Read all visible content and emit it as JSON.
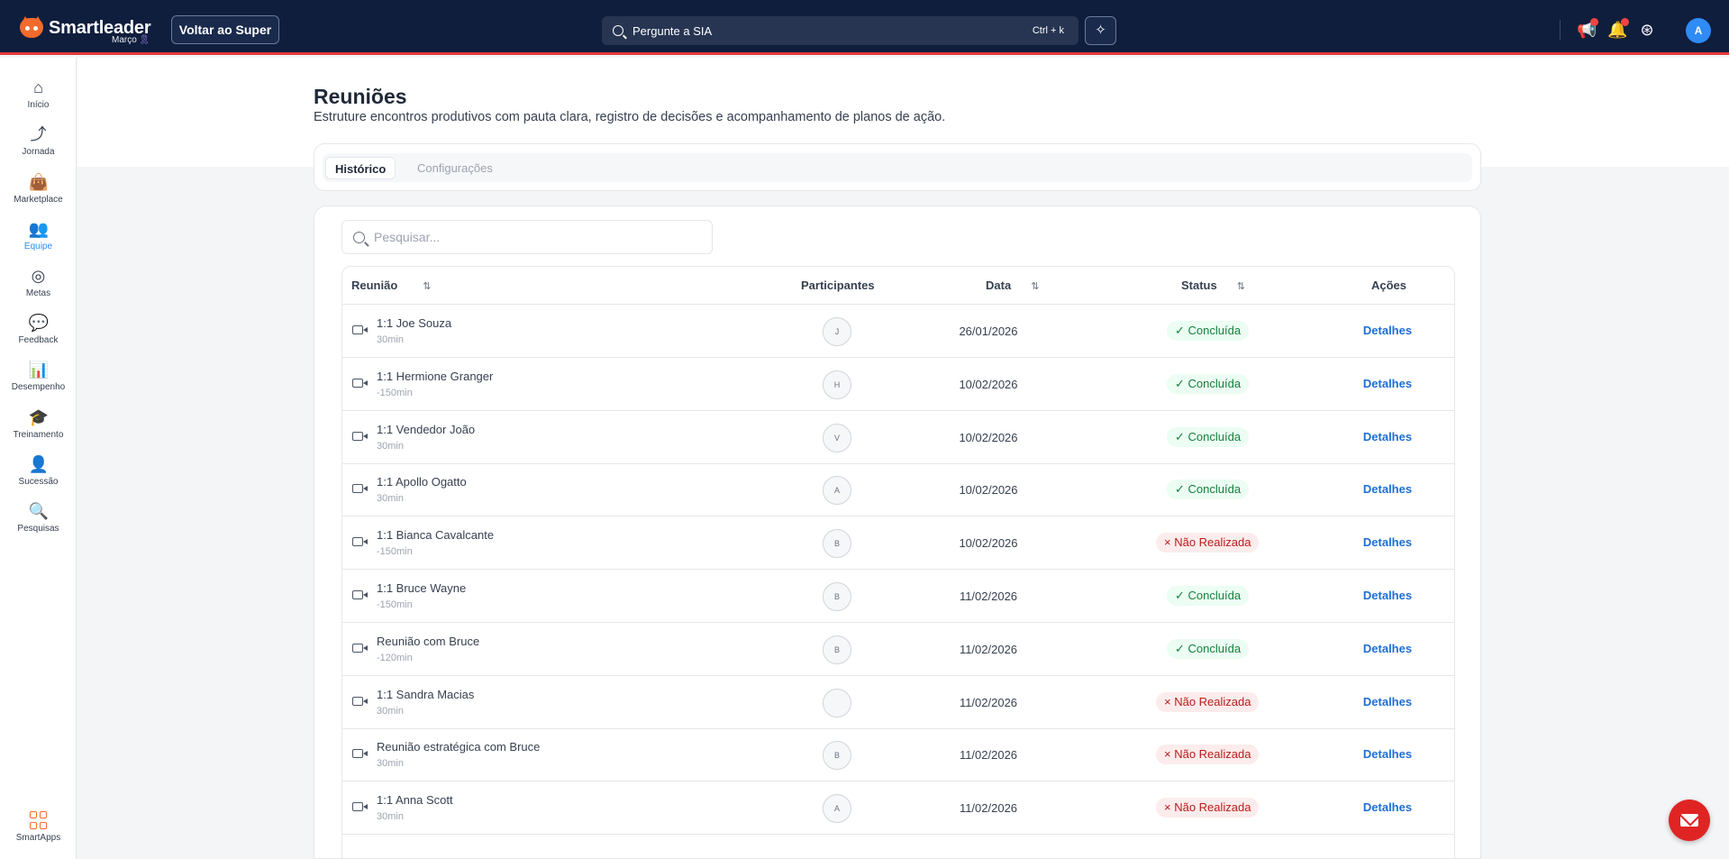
{
  "brand": {
    "name": "Smartleader",
    "sub": "Março",
    "ribbon": "🎗"
  },
  "topbar": {
    "back_label": "Voltar ao Super",
    "search_placeholder": "Pergunte a SIA",
    "search_shortcut": "Ctrl + k",
    "user_initial": "A",
    "icons": [
      "sparkle-wand-icon",
      "megaphone-icon",
      "bell-icon",
      "help-lifebuoy-icon"
    ],
    "accent_color": "#e23b3b",
    "bar_color": "#0f1e3d"
  },
  "sidebar": {
    "items": [
      {
        "label": "Início",
        "icon": "home-icon"
      },
      {
        "label": "Jornada",
        "icon": "route-icon"
      },
      {
        "label": "Marketplace",
        "icon": "shopping-bag-icon"
      },
      {
        "label": "Equipe",
        "icon": "users-icon",
        "active": true
      },
      {
        "label": "Metas",
        "icon": "target-icon"
      },
      {
        "label": "Feedback",
        "icon": "chat-bubbles-icon"
      },
      {
        "label": "Desempenho",
        "icon": "bar-chart-icon"
      },
      {
        "label": "Treinamento",
        "icon": "graduation-cap-icon"
      },
      {
        "label": "Sucessão",
        "icon": "user-plus-icon"
      },
      {
        "label": "Pesquisas",
        "icon": "search-document-icon"
      }
    ],
    "smartapps_label": "SmartApps"
  },
  "page": {
    "title": "Reuniões",
    "subtitle": "Estruture encontros produtivos com pauta clara, registro de decisões e acompanhamento de planos de ação."
  },
  "tabs": [
    {
      "label": "Histórico",
      "active": true
    },
    {
      "label": "Configurações",
      "active": false
    }
  ],
  "search": {
    "placeholder": "Pesquisar..."
  },
  "table": {
    "headers": {
      "meeting": "Reunião",
      "participants": "Participantes",
      "date": "Data",
      "status": "Status",
      "actions": "Ações"
    },
    "rows": [
      {
        "title": "1:1 Joe Souza",
        "duration": "30min",
        "participant": "J",
        "date": "26/01/2026",
        "status": "✓ Concluída",
        "status_type": "ok",
        "action": "Detalhes"
      },
      {
        "title": "1:1 Hermione Granger",
        "duration": "-150min",
        "participant": "H",
        "date": "10/02/2026",
        "status": "✓ Concluída",
        "status_type": "ok",
        "action": "Detalhes"
      },
      {
        "title": "1:1 Vendedor João",
        "duration": "30min",
        "participant": "V",
        "date": "10/02/2026",
        "status": "✓ Concluída",
        "status_type": "ok",
        "action": "Detalhes"
      },
      {
        "title": "1:1 Apollo Ogatto",
        "duration": "30min",
        "participant": "A",
        "date": "10/02/2026",
        "status": "✓ Concluída",
        "status_type": "ok",
        "action": "Detalhes"
      },
      {
        "title": "1:1 Bianca Cavalcante",
        "duration": "-150min",
        "participant": "B",
        "date": "10/02/2026",
        "status": "× Não Realizada",
        "status_type": "no",
        "action": "Detalhes"
      },
      {
        "title": "1:1 Bruce Wayne",
        "duration": "-150min",
        "participant": "B",
        "date": "11/02/2026",
        "status": "✓ Concluída",
        "status_type": "ok",
        "action": "Detalhes"
      },
      {
        "title": "Reunião com Bruce",
        "duration": "-120min",
        "participant": "B",
        "date": "11/02/2026",
        "status": "✓ Concluída",
        "status_type": "ok",
        "action": "Detalhes"
      },
      {
        "title": "1:1 Sandra Macias",
        "duration": "30min",
        "participant": "",
        "date": "11/02/2026",
        "status": "× Não Realizada",
        "status_type": "no",
        "action": "Detalhes"
      },
      {
        "title": "Reunião estratégica com Bruce",
        "duration": "30min",
        "participant": "B",
        "date": "11/02/2026",
        "status": "× Não Realizada",
        "status_type": "no",
        "action": "Detalhes"
      },
      {
        "title": "1:1 Anna Scott",
        "duration": "30min",
        "participant": "A",
        "date": "11/02/2026",
        "status": "× Não Realizada",
        "status_type": "no",
        "action": "Detalhes"
      }
    ]
  },
  "fab": {
    "icon": "mail-icon",
    "color": "#e02424"
  }
}
